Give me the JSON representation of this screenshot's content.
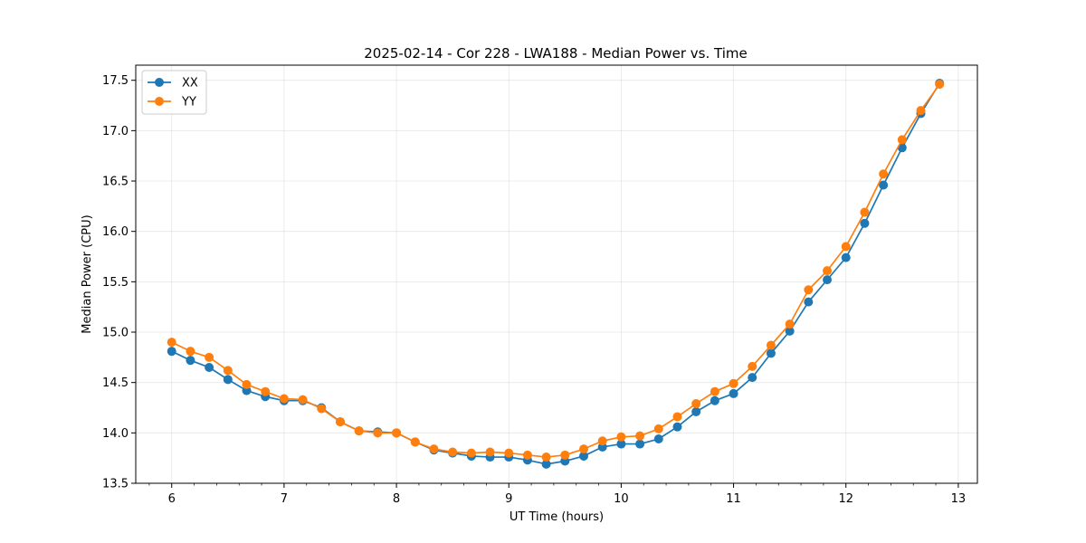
{
  "chart_data": {
    "type": "line",
    "title": "2025-02-14 - Cor 228 - LWA188 - Median Power vs. Time",
    "xlabel": "UT Time (hours)",
    "ylabel": "Median Power (CPU)",
    "xlim": [
      5.68,
      13.17
    ],
    "ylim": [
      13.5,
      17.65
    ],
    "xticks": [
      6,
      7,
      8,
      9,
      10,
      11,
      12,
      13
    ],
    "yticks": [
      13.5,
      14.0,
      14.5,
      15.0,
      15.5,
      16.0,
      16.5,
      17.0,
      17.5
    ],
    "xtick_labels": [
      "6",
      "7",
      "8",
      "9",
      "10",
      "11",
      "12",
      "13"
    ],
    "ytick_labels": [
      "13.5",
      "14.0",
      "14.5",
      "15.0",
      "15.5",
      "16.0",
      "16.5",
      "17.0",
      "17.5"
    ],
    "grid": true,
    "legend_position": "top-left",
    "x": [
      6.0,
      6.1667,
      6.3333,
      6.5,
      6.6667,
      6.8333,
      7.0,
      7.1667,
      7.3333,
      7.5,
      7.6667,
      7.8333,
      8.0,
      8.1667,
      8.3333,
      8.5,
      8.6667,
      8.8333,
      9.0,
      9.1667,
      9.3333,
      9.5,
      9.6667,
      9.8333,
      10.0,
      10.1667,
      10.3333,
      10.5,
      10.6667,
      10.8333,
      11.0,
      11.1667,
      11.3333,
      11.5,
      11.6667,
      11.8333,
      12.0,
      12.1667,
      12.3333,
      12.5,
      12.6667,
      12.8333
    ],
    "series": [
      {
        "name": "XX",
        "color": "#1f77b4",
        "values": [
          14.81,
          14.72,
          14.65,
          14.53,
          14.42,
          14.36,
          14.32,
          14.32,
          14.25,
          14.11,
          14.02,
          14.01,
          14.0,
          13.91,
          13.83,
          13.8,
          13.77,
          13.76,
          13.76,
          13.73,
          13.69,
          13.72,
          13.77,
          13.86,
          13.89,
          13.89,
          13.94,
          14.06,
          14.21,
          14.32,
          14.39,
          14.55,
          14.79,
          15.01,
          15.3,
          15.52,
          15.74,
          16.08,
          16.46,
          16.83,
          17.17,
          17.47
        ]
      },
      {
        "name": "YY",
        "color": "#ff7f0e",
        "values": [
          14.9,
          14.81,
          14.75,
          14.62,
          14.48,
          14.41,
          14.34,
          14.33,
          14.24,
          14.11,
          14.02,
          14.0,
          14.0,
          13.91,
          13.84,
          13.81,
          13.8,
          13.81,
          13.8,
          13.78,
          13.76,
          13.78,
          13.84,
          13.92,
          13.96,
          13.97,
          14.04,
          14.16,
          14.29,
          14.41,
          14.49,
          14.66,
          14.87,
          15.08,
          15.42,
          15.61,
          15.85,
          16.19,
          16.57,
          16.91,
          17.2,
          17.46
        ]
      }
    ]
  }
}
